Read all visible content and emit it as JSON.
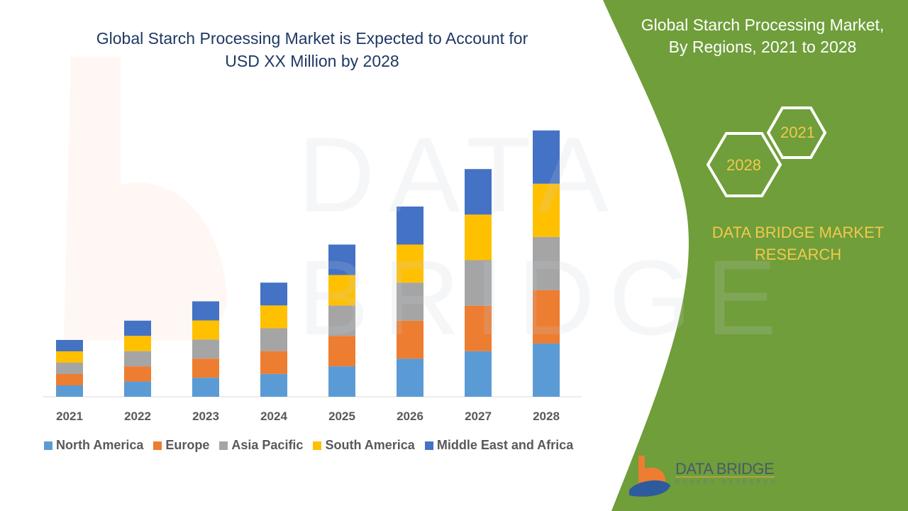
{
  "header": {
    "title_line1": "Global Starch Processing Market is Expected to Account for",
    "title_line2": "USD XX Million by 2028"
  },
  "side_panel": {
    "title_line1": "Global Starch Processing Market,",
    "title_line2": "By Regions, 2021 to 2028",
    "hex_start_year": "2021",
    "hex_end_year": "2028",
    "brand_line1": "DATA BRIDGE MARKET",
    "brand_line2": "RESEARCH",
    "logo_text": "DATA BRIDGE",
    "logo_subtext": "MARKET RESEARCH",
    "colors": {
      "panel": "#6f9e3a",
      "accent_text": "#f2c94c"
    }
  },
  "watermark": "DATA BRIDGE",
  "chart_data": {
    "type": "bar",
    "stacked": true,
    "title": "Global Starch Processing Market is Expected to Account for USD XX Million by 2028",
    "xlabel": "",
    "ylabel": "",
    "y_axis_shown": false,
    "grid": false,
    "legend_position": "bottom",
    "categories": [
      "2021",
      "2022",
      "2023",
      "2024",
      "2025",
      "2026",
      "2027",
      "2028"
    ],
    "series": [
      {
        "name": "North America",
        "color": "#5b9bd5",
        "values": [
          1.0,
          1.34,
          1.68,
          2.01,
          2.68,
          3.35,
          4.01,
          4.69
        ]
      },
      {
        "name": "Europe",
        "color": "#ed7d31",
        "values": [
          1.0,
          1.34,
          1.68,
          2.01,
          2.68,
          3.35,
          4.01,
          4.69
        ]
      },
      {
        "name": "Asia Pacific",
        "color": "#a5a5a5",
        "values": [
          1.0,
          1.34,
          1.68,
          2.01,
          2.68,
          3.35,
          4.01,
          4.69
        ]
      },
      {
        "name": "South America",
        "color": "#ffc000",
        "values": [
          1.0,
          1.34,
          1.68,
          2.01,
          2.68,
          3.35,
          4.01,
          4.69
        ]
      },
      {
        "name": "Middle East and Africa",
        "color": "#4472c4",
        "values": [
          1.0,
          1.34,
          1.68,
          2.01,
          2.68,
          3.35,
          4.01,
          4.69
        ]
      }
    ]
  }
}
